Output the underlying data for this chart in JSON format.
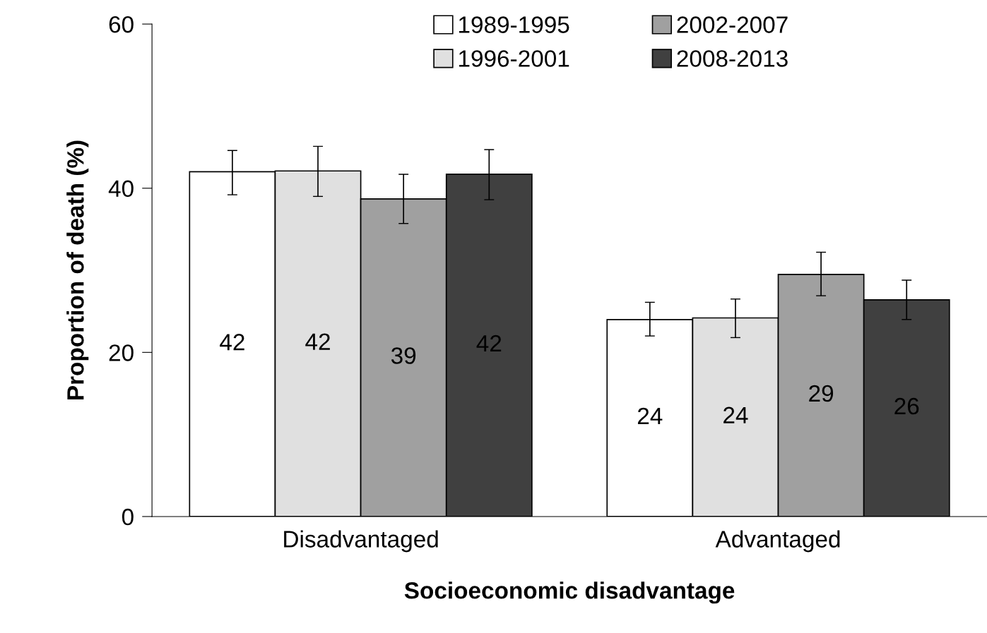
{
  "chart_data": {
    "type": "bar",
    "xlabel": "Socioeconomic disadvantage",
    "ylabel": "Proportion of death (%)",
    "categories": [
      "Disadvantaged",
      "Advantaged"
    ],
    "series": [
      {
        "name": "1989-1995",
        "color": "#ffffff",
        "values": [
          42.0,
          24.0
        ],
        "errors": [
          [
            39.2,
            44.6
          ],
          [
            22.0,
            26.1
          ]
        ],
        "value_labels": [
          "42",
          "24"
        ]
      },
      {
        "name": "1996-2001",
        "color": "#e0e0e0",
        "values": [
          42.1,
          24.2
        ],
        "errors": [
          [
            39.0,
            45.1
          ],
          [
            21.8,
            26.5
          ]
        ],
        "value_labels": [
          "42",
          "24"
        ]
      },
      {
        "name": "2002-2007",
        "color": "#a0a0a0",
        "values": [
          38.7,
          29.5
        ],
        "errors": [
          [
            35.7,
            41.7
          ],
          [
            26.9,
            32.2
          ]
        ],
        "value_labels": [
          "39",
          "29"
        ]
      },
      {
        "name": "2008-2013",
        "color": "#404040",
        "values": [
          41.7,
          26.4
        ],
        "errors": [
          [
            38.6,
            44.7
          ],
          [
            24.0,
            28.8
          ]
        ],
        "value_labels": [
          "42",
          "26"
        ]
      }
    ],
    "ylim": [
      0,
      60
    ],
    "yticks": [
      0,
      20,
      40,
      60
    ],
    "grid": false,
    "legend": "top"
  }
}
